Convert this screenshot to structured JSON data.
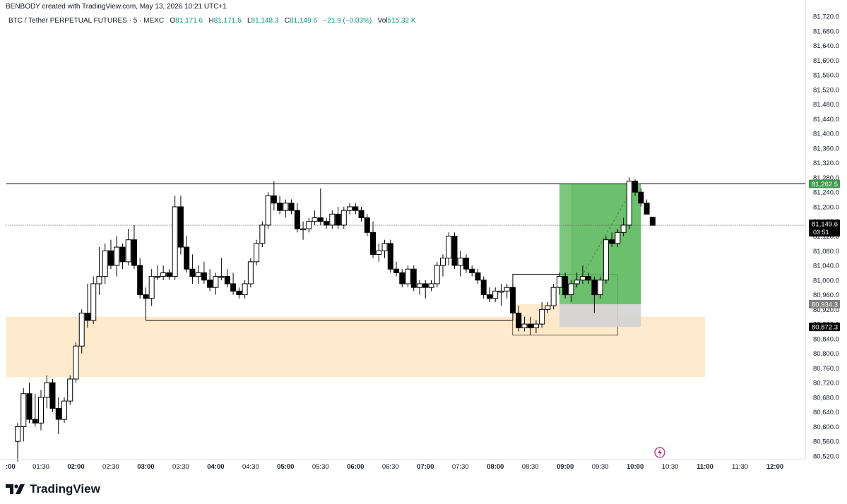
{
  "header": {
    "credit": "BENBODY created with TradingView.com, May 13, 2026 10:21 UTC+1",
    "symbol": "BTC / Tether PERPETUAL FUTURES · 5 · MEXC",
    "ohlc": {
      "o_label": "O",
      "o": "81,171.6",
      "h_label": "H",
      "h": "81,171.6",
      "l_label": "L",
      "l": "81,148.3",
      "c_label": "C",
      "c": "81,149.6",
      "change": "−21.9 (−0.03%)",
      "vol_label": "Vol",
      "vol": "515.32 K"
    }
  },
  "footer": {
    "brand": "TradingView"
  },
  "colors": {
    "up_body": "#ffffff",
    "down_body": "#000000",
    "wick": "#000000",
    "demand_zone": "#ffe8c8",
    "profit_zone": "#5cb85c",
    "stop_zone": "#d3d3d3",
    "price_line": "#000000",
    "last_price_bg": "#000000",
    "grid_text": "#131722",
    "bolt": "#b52a8a"
  },
  "icons": {
    "brand": "tradingview-logo-icon",
    "bolt": "lightning-bolt-icon"
  },
  "chart_data": {
    "type": "candlestick",
    "title": "",
    "ylim": [
      80500,
      81720
    ],
    "y_ticks": [
      "81,720.0",
      "81,680.0",
      "81,640.0",
      "81,600.0",
      "81,560.0",
      "81,520.0",
      "81,480.0",
      "81,440.0",
      "81,400.0",
      "81,360.0",
      "81,320.0",
      "81,280.0",
      "81,240.0",
      "81,200.0",
      "81,160.0",
      "81,120.0",
      "81,080.0",
      "81,040.0",
      "81,000.0",
      "80,960.0",
      "80,920.0",
      "80,880.0",
      "80,840.0",
      "80,800.0",
      "80,760.0",
      "80,720.0",
      "80,680.0",
      "80,640.0",
      "80,600.0",
      "80,560.0",
      "80,520.0"
    ],
    "x_ticks": [
      ":00",
      "01:30",
      "02:00",
      "02:30",
      "03:00",
      "03:30",
      "04:00",
      "04:30",
      "05:00",
      "05:30",
      "06:00",
      "06:30",
      "07:00",
      "07:30",
      "08:00",
      "08:30",
      "09:00",
      "09:30",
      "10:00",
      "10:30",
      "11:00",
      "11:30",
      "12:00"
    ],
    "x_tick_bold": [
      ":00",
      "02:00",
      "03:00",
      "04:00",
      "05:00",
      "06:00",
      "07:00",
      "08:00",
      "09:00",
      "10:00",
      "11:00",
      "12:00"
    ],
    "x_range": [
      "01:00",
      "12:10"
    ],
    "candles": [
      {
        "t": "01:10",
        "o": 80560,
        "h": 80610,
        "l": 80505,
        "c": 80600
      },
      {
        "t": "01:15",
        "o": 80600,
        "h": 80705,
        "l": 80560,
        "c": 80690
      },
      {
        "t": "01:20",
        "o": 80690,
        "h": 80720,
        "l": 80610,
        "c": 80620
      },
      {
        "t": "01:25",
        "o": 80620,
        "h": 80690,
        "l": 80600,
        "c": 80610
      },
      {
        "t": "01:30",
        "o": 80610,
        "h": 80700,
        "l": 80590,
        "c": 80680
      },
      {
        "t": "01:35",
        "o": 80680,
        "h": 80740,
        "l": 80650,
        "c": 80720
      },
      {
        "t": "01:40",
        "o": 80720,
        "h": 80730,
        "l": 80640,
        "c": 80650
      },
      {
        "t": "01:45",
        "o": 80650,
        "h": 80680,
        "l": 80580,
        "c": 80620
      },
      {
        "t": "01:50",
        "o": 80620,
        "h": 80680,
        "l": 80610,
        "c": 80670
      },
      {
        "t": "01:55",
        "o": 80670,
        "h": 80740,
        "l": 80660,
        "c": 80730
      },
      {
        "t": "02:00",
        "o": 80730,
        "h": 80830,
        "l": 80720,
        "c": 80820
      },
      {
        "t": "02:05",
        "o": 80820,
        "h": 80920,
        "l": 80800,
        "c": 80910
      },
      {
        "t": "02:10",
        "o": 80910,
        "h": 80990,
        "l": 80870,
        "c": 80890
      },
      {
        "t": "02:15",
        "o": 80890,
        "h": 81010,
        "l": 80880,
        "c": 80990
      },
      {
        "t": "02:20",
        "o": 80990,
        "h": 81090,
        "l": 80960,
        "c": 81010
      },
      {
        "t": "02:25",
        "o": 81010,
        "h": 81100,
        "l": 80990,
        "c": 81080
      },
      {
        "t": "02:30",
        "o": 81080,
        "h": 81110,
        "l": 81030,
        "c": 81040
      },
      {
        "t": "02:35",
        "o": 81040,
        "h": 81120,
        "l": 81010,
        "c": 81090
      },
      {
        "t": "02:40",
        "o": 81090,
        "h": 81100,
        "l": 81030,
        "c": 81050
      },
      {
        "t": "02:45",
        "o": 81050,
        "h": 81140,
        "l": 81040,
        "c": 81110
      },
      {
        "t": "02:50",
        "o": 81110,
        "h": 81150,
        "l": 81030,
        "c": 81040
      },
      {
        "t": "02:55",
        "o": 81040,
        "h": 81060,
        "l": 80950,
        "c": 80960
      },
      {
        "t": "03:00",
        "o": 80960,
        "h": 80980,
        "l": 80930,
        "c": 80950
      },
      {
        "t": "03:05",
        "o": 80950,
        "h": 81030,
        "l": 80930,
        "c": 81010
      },
      {
        "t": "03:10",
        "o": 81010,
        "h": 81040,
        "l": 81000,
        "c": 81010
      },
      {
        "t": "03:15",
        "o": 81010,
        "h": 81040,
        "l": 81000,
        "c": 81020
      },
      {
        "t": "03:20",
        "o": 81020,
        "h": 81030,
        "l": 81000,
        "c": 81010
      },
      {
        "t": "03:25",
        "o": 81010,
        "h": 81230,
        "l": 81000,
        "c": 81200
      },
      {
        "t": "03:30",
        "o": 81200,
        "h": 81230,
        "l": 81070,
        "c": 81090
      },
      {
        "t": "03:35",
        "o": 81090,
        "h": 81120,
        "l": 81020,
        "c": 81030
      },
      {
        "t": "03:40",
        "o": 81030,
        "h": 81070,
        "l": 80990,
        "c": 81010
      },
      {
        "t": "03:45",
        "o": 81010,
        "h": 81040,
        "l": 80990,
        "c": 81020
      },
      {
        "t": "03:50",
        "o": 81020,
        "h": 81050,
        "l": 80990,
        "c": 81000
      },
      {
        "t": "03:55",
        "o": 81000,
        "h": 81030,
        "l": 80970,
        "c": 80980
      },
      {
        "t": "04:00",
        "o": 80980,
        "h": 81020,
        "l": 80960,
        "c": 81010
      },
      {
        "t": "04:05",
        "o": 81010,
        "h": 81060,
        "l": 81000,
        "c": 81010
      },
      {
        "t": "04:10",
        "o": 81010,
        "h": 81030,
        "l": 80980,
        "c": 80990
      },
      {
        "t": "04:15",
        "o": 80990,
        "h": 81020,
        "l": 80960,
        "c": 80970
      },
      {
        "t": "04:20",
        "o": 80970,
        "h": 80980,
        "l": 80950,
        "c": 80960
      },
      {
        "t": "04:25",
        "o": 80960,
        "h": 81000,
        "l": 80950,
        "c": 80990
      },
      {
        "t": "04:30",
        "o": 80990,
        "h": 81060,
        "l": 80980,
        "c": 81050
      },
      {
        "t": "04:35",
        "o": 81050,
        "h": 81110,
        "l": 81040,
        "c": 81100
      },
      {
        "t": "04:40",
        "o": 81100,
        "h": 81160,
        "l": 81090,
        "c": 81150
      },
      {
        "t": "04:45",
        "o": 81150,
        "h": 81240,
        "l": 81140,
        "c": 81230
      },
      {
        "t": "04:50",
        "o": 81230,
        "h": 81270,
        "l": 81190,
        "c": 81210
      },
      {
        "t": "04:55",
        "o": 81210,
        "h": 81230,
        "l": 81180,
        "c": 81190
      },
      {
        "t": "05:00",
        "o": 81190,
        "h": 81220,
        "l": 81170,
        "c": 81210
      },
      {
        "t": "05:05",
        "o": 81210,
        "h": 81220,
        "l": 81180,
        "c": 81190
      },
      {
        "t": "05:10",
        "o": 81190,
        "h": 81210,
        "l": 81130,
        "c": 81140
      },
      {
        "t": "05:15",
        "o": 81140,
        "h": 81160,
        "l": 81110,
        "c": 81140
      },
      {
        "t": "05:20",
        "o": 81140,
        "h": 81170,
        "l": 81130,
        "c": 81160
      },
      {
        "t": "05:25",
        "o": 81160,
        "h": 81190,
        "l": 81150,
        "c": 81170
      },
      {
        "t": "05:30",
        "o": 81170,
        "h": 81250,
        "l": 81150,
        "c": 81160
      },
      {
        "t": "05:35",
        "o": 81160,
        "h": 81170,
        "l": 81140,
        "c": 81150
      },
      {
        "t": "05:40",
        "o": 81150,
        "h": 81190,
        "l": 81140,
        "c": 81180
      },
      {
        "t": "05:45",
        "o": 81180,
        "h": 81200,
        "l": 81140,
        "c": 81150
      },
      {
        "t": "05:50",
        "o": 81150,
        "h": 81200,
        "l": 81140,
        "c": 81190
      },
      {
        "t": "05:55",
        "o": 81190,
        "h": 81210,
        "l": 81180,
        "c": 81200
      },
      {
        "t": "06:00",
        "o": 81200,
        "h": 81210,
        "l": 81180,
        "c": 81190
      },
      {
        "t": "06:05",
        "o": 81190,
        "h": 81200,
        "l": 81160,
        "c": 81170
      },
      {
        "t": "06:10",
        "o": 81170,
        "h": 81180,
        "l": 81120,
        "c": 81130
      },
      {
        "t": "06:15",
        "o": 81130,
        "h": 81160,
        "l": 81060,
        "c": 81070
      },
      {
        "t": "06:20",
        "o": 81070,
        "h": 81100,
        "l": 81050,
        "c": 81080
      },
      {
        "t": "06:25",
        "o": 81080,
        "h": 81110,
        "l": 81060,
        "c": 81100
      },
      {
        "t": "06:30",
        "o": 81100,
        "h": 81110,
        "l": 81020,
        "c": 81030
      },
      {
        "t": "06:35",
        "o": 81030,
        "h": 81050,
        "l": 81010,
        "c": 81020
      },
      {
        "t": "06:40",
        "o": 81020,
        "h": 81030,
        "l": 80980,
        "c": 80990
      },
      {
        "t": "06:45",
        "o": 80990,
        "h": 81040,
        "l": 80980,
        "c": 81030
      },
      {
        "t": "06:50",
        "o": 81030,
        "h": 81040,
        "l": 80970,
        "c": 80980
      },
      {
        "t": "06:55",
        "o": 80980,
        "h": 81000,
        "l": 80960,
        "c": 80990
      },
      {
        "t": "07:00",
        "o": 80990,
        "h": 81000,
        "l": 80950,
        "c": 80980
      },
      {
        "t": "07:05",
        "o": 80980,
        "h": 81000,
        "l": 80970,
        "c": 80990
      },
      {
        "t": "07:10",
        "o": 80990,
        "h": 81050,
        "l": 80980,
        "c": 81040
      },
      {
        "t": "07:15",
        "o": 81040,
        "h": 81070,
        "l": 81010,
        "c": 81060
      },
      {
        "t": "07:20",
        "o": 81060,
        "h": 81130,
        "l": 81040,
        "c": 81120
      },
      {
        "t": "07:25",
        "o": 81120,
        "h": 81130,
        "l": 81030,
        "c": 81040
      },
      {
        "t": "07:30",
        "o": 81040,
        "h": 81080,
        "l": 81010,
        "c": 81060
      },
      {
        "t": "07:35",
        "o": 81060,
        "h": 81070,
        "l": 81020,
        "c": 81030
      },
      {
        "t": "07:40",
        "o": 81030,
        "h": 81040,
        "l": 81010,
        "c": 81020
      },
      {
        "t": "07:45",
        "o": 81020,
        "h": 81030,
        "l": 80990,
        "c": 81000
      },
      {
        "t": "07:50",
        "o": 81000,
        "h": 81010,
        "l": 80950,
        "c": 80960
      },
      {
        "t": "07:55",
        "o": 80960,
        "h": 80980,
        "l": 80940,
        "c": 80950
      },
      {
        "t": "08:00",
        "o": 80950,
        "h": 80980,
        "l": 80940,
        "c": 80970
      },
      {
        "t": "08:05",
        "o": 80970,
        "h": 80990,
        "l": 80930,
        "c": 80970
      },
      {
        "t": "08:10",
        "o": 80970,
        "h": 80990,
        "l": 80950,
        "c": 80980
      },
      {
        "t": "08:15",
        "o": 80980,
        "h": 80990,
        "l": 80890,
        "c": 80910
      },
      {
        "t": "08:20",
        "o": 80910,
        "h": 80930,
        "l": 80860,
        "c": 80870
      },
      {
        "t": "08:25",
        "o": 80870,
        "h": 80900,
        "l": 80860,
        "c": 80880
      },
      {
        "t": "08:30",
        "o": 80880,
        "h": 80900,
        "l": 80850,
        "c": 80870
      },
      {
        "t": "08:35",
        "o": 80870,
        "h": 80890,
        "l": 80855,
        "c": 80880
      },
      {
        "t": "08:40",
        "o": 80880,
        "h": 80940,
        "l": 80870,
        "c": 80920
      },
      {
        "t": "08:45",
        "o": 80920,
        "h": 80940,
        "l": 80910,
        "c": 80930
      },
      {
        "t": "08:50",
        "o": 80930,
        "h": 80990,
        "l": 80920,
        "c": 80980
      },
      {
        "t": "08:55",
        "o": 80980,
        "h": 81020,
        "l": 80960,
        "c": 81010
      },
      {
        "t": "09:00",
        "o": 81010,
        "h": 81020,
        "l": 80950,
        "c": 80960
      },
      {
        "t": "09:05",
        "o": 80960,
        "h": 81000,
        "l": 80940,
        "c": 80990
      },
      {
        "t": "09:10",
        "o": 80990,
        "h": 81020,
        "l": 80980,
        "c": 81000
      },
      {
        "t": "09:15",
        "o": 81000,
        "h": 81040,
        "l": 80990,
        "c": 81010
      },
      {
        "t": "09:20",
        "o": 81010,
        "h": 81020,
        "l": 80990,
        "c": 81000
      },
      {
        "t": "09:25",
        "o": 81000,
        "h": 81010,
        "l": 80910,
        "c": 80960
      },
      {
        "t": "09:30",
        "o": 80960,
        "h": 81010,
        "l": 80950,
        "c": 81000
      },
      {
        "t": "09:35",
        "o": 81000,
        "h": 81120,
        "l": 80990,
        "c": 81110
      },
      {
        "t": "09:40",
        "o": 81110,
        "h": 81130,
        "l": 81090,
        "c": 81100
      },
      {
        "t": "09:45",
        "o": 81100,
        "h": 81140,
        "l": 81090,
        "c": 81130
      },
      {
        "t": "09:50",
        "o": 81130,
        "h": 81170,
        "l": 81120,
        "c": 81150
      },
      {
        "t": "09:55",
        "o": 81150,
        "h": 81280,
        "l": 81140,
        "c": 81270
      },
      {
        "t": "10:00",
        "o": 81270,
        "h": 81275,
        "l": 81230,
        "c": 81240
      },
      {
        "t": "10:05",
        "o": 81240,
        "h": 81250,
        "l": 81200,
        "c": 81210
      },
      {
        "t": "10:10",
        "o": 81210,
        "h": 81220,
        "l": 81180,
        "c": 81180
      },
      {
        "t": "10:15",
        "o": 81171.6,
        "h": 81171.6,
        "l": 81148.3,
        "c": 81149.6
      }
    ],
    "lines": [
      {
        "name": "resistance-line",
        "price": 81262.5,
        "from": "01:00",
        "to": "12:10"
      },
      {
        "name": "support-line",
        "price": 80890,
        "from": "03:00",
        "to": "08:15"
      },
      {
        "name": "current-price-line",
        "price": 81149.6,
        "from": "01:00",
        "to": "12:10",
        "dotted": true
      }
    ],
    "zones": [
      {
        "name": "demand-zone",
        "price_top": 80900,
        "price_bottom": 80735,
        "from": "01:00",
        "to": "11:00",
        "color_key": "demand_zone",
        "opacity": 0.9
      },
      {
        "name": "entry-box",
        "price_top": 81016,
        "price_bottom": 80850,
        "from": "08:15",
        "to": "09:45",
        "outline": true
      },
      {
        "name": "entry-shade",
        "price_top": 80934.3,
        "price_bottom": 80850,
        "from": "08:15",
        "to": "09:45",
        "color_key": "demand_zone",
        "opacity": 0.9
      },
      {
        "name": "profit-zone",
        "price_top": 81262.5,
        "price_bottom": 80934.3,
        "from": "08:55",
        "to": "10:05",
        "color_key": "profit_zone",
        "opacity": 0.8
      },
      {
        "name": "profit-zone-active",
        "price_top": 81262.5,
        "price_bottom": 80934.3,
        "from": "09:05",
        "to": "10:05",
        "color_key": "profit_zone",
        "opacity": 0.5
      },
      {
        "name": "stop-zone",
        "price_top": 80934.3,
        "price_bottom": 80872.3,
        "from": "08:55",
        "to": "10:05",
        "color_key": "stop_zone",
        "opacity": 0.9
      }
    ],
    "price_labels": [
      {
        "name": "resistance-price-label",
        "text": "81,262.5",
        "price": 81262.5,
        "bg": "#3f9a4b",
        "fg": "#ffffff"
      },
      {
        "name": "last-price-label",
        "text": "81,149.6",
        "sub": "03:51",
        "price": 81149.6,
        "bg": "#000000",
        "fg": "#ffffff"
      },
      {
        "name": "entry-price-label",
        "text": "80,934.3",
        "price": 80934.3,
        "bg": "#7f7f7f",
        "fg": "#ffffff"
      },
      {
        "name": "stop-price-label",
        "text": "80,872.3",
        "price": 80872.3,
        "bg": "#000000",
        "fg": "#ffffff"
      }
    ]
  }
}
